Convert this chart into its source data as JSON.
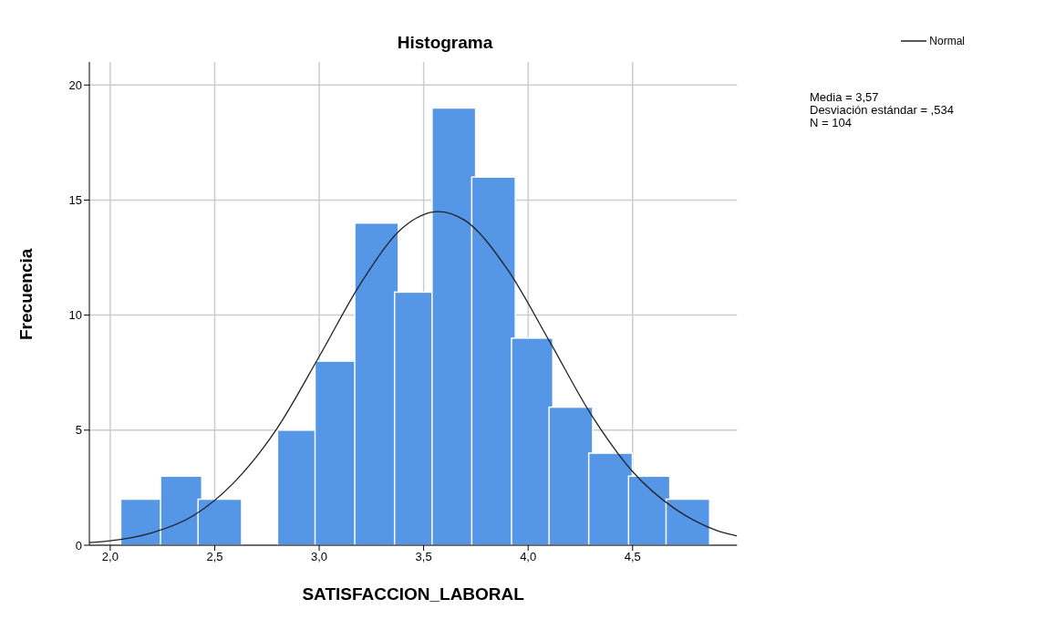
{
  "chart_data": {
    "type": "histogram",
    "title": "Histograma",
    "xlabel": "SATISFACCION_LABORAL",
    "ylabel": "Frecuencia",
    "bins": [
      2.06,
      2.25,
      2.43,
      2.62,
      2.81,
      2.99,
      3.18,
      3.37,
      3.55,
      3.74,
      3.93,
      4.11,
      4.3,
      4.49,
      4.67,
      4.86
    ],
    "values": [
      2,
      3,
      2,
      0,
      5,
      8,
      14,
      11,
      19,
      16,
      9,
      6,
      4,
      3,
      2
    ],
    "color": "#5596e6",
    "series": [
      {
        "name": "Normal",
        "type": "line",
        "color": "#222222",
        "x": [
          1.9,
          2.0,
          2.2,
          2.4,
          2.6,
          2.8,
          3.0,
          3.2,
          3.4,
          3.57,
          3.7,
          3.9,
          4.1,
          4.3,
          4.5,
          4.7,
          4.9,
          5.0
        ],
        "values": [
          0.11,
          0.19,
          0.54,
          1.3,
          2.8,
          5.1,
          8.2,
          11.4,
          13.8,
          14.5,
          14.1,
          12.0,
          8.9,
          5.7,
          3.2,
          1.6,
          0.65,
          0.4
        ]
      }
    ],
    "xlim": [
      1.9,
      5.0
    ],
    "xticks": [
      {
        "value": 2.0,
        "label": "2,0"
      },
      {
        "value": 2.5,
        "label": "2,5"
      },
      {
        "value": 3.0,
        "label": "3,0"
      },
      {
        "value": 3.5,
        "label": "3,5"
      },
      {
        "value": 4.0,
        "label": "4,0"
      },
      {
        "value": 4.5,
        "label": "4,5"
      }
    ],
    "ylim": [
      0,
      21
    ],
    "yticks": [
      0,
      5,
      10,
      15,
      20
    ],
    "grid": true,
    "legend": "top right",
    "marker": "none",
    "line_style": "solid",
    "annotations": [
      "Media = 3,57",
      "Desviación estándar = ,534",
      "N = 104"
    ]
  }
}
